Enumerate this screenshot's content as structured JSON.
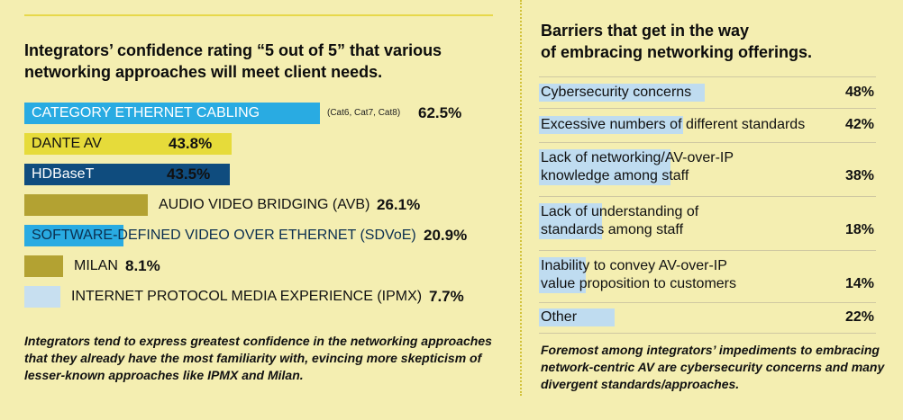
{
  "chart_data": [
    {
      "type": "bar",
      "orientation": "horizontal",
      "title": "Integrators’ confidence rating “5 out of 5” that various networking approaches will meet client needs.",
      "categories": [
        "CATEGORY ETHERNET CABLING",
        "DANTE AV",
        "HDBaseT",
        "AUDIO VIDEO BRIDGING (AVB)",
        "SOFTWARE-DEFINED VIDEO OVER ETHERNET (SDVoE)",
        "MILAN",
        "INTERNET PROTOCOL MEDIA EXPERIENCE (IPMX)"
      ],
      "notes": [
        "(Cat6, Cat7, Cat8)",
        "",
        "",
        "",
        "",
        "",
        ""
      ],
      "values": [
        62.5,
        43.8,
        43.5,
        26.1,
        20.9,
        8.1,
        7.7
      ],
      "value_labels": [
        "62.5%",
        "43.8%",
        "43.5%",
        "26.1%",
        "20.9%",
        "8.1%",
        "7.7%"
      ],
      "colors": [
        "#29abe2",
        "#e6db3a",
        "#0f4c7e",
        "#b3a232",
        "#29abe2",
        "#b3a232",
        "#c7dff0"
      ],
      "caption": "Integrators tend to express greatest confidence in the networking approaches that they already have the most familiarity with, evincing more skepticism of lesser-known approaches like IPMX and Milan."
    },
    {
      "type": "table",
      "title_lines": [
        "Barriers that get in the way",
        "of embracing networking offerings."
      ],
      "rows": [
        {
          "lines": [
            "Cybersecurity concerns"
          ],
          "value": 48,
          "label": "48%"
        },
        {
          "lines": [
            "Excessive numbers of different standards"
          ],
          "value": 42,
          "label": "42%"
        },
        {
          "lines": [
            "Lack of networking/AV-over-IP",
            "knowledge among staff"
          ],
          "value": 38,
          "label": "38%"
        },
        {
          "lines": [
            "Lack of understanding of",
            "standards among staff"
          ],
          "value": 18,
          "label": "18%"
        },
        {
          "lines": [
            "Inability to convey AV-over-IP",
            "value proposition to customers"
          ],
          "value": 14,
          "label": "14%"
        },
        {
          "lines": [
            "Other"
          ],
          "value": 22,
          "label": "22%"
        }
      ],
      "highlight_color": "#bfdcf0",
      "caption": "Foremost among integrators’ impediments to embracing network-centric AV are cybersecurity concerns and many divergent standards/approaches."
    }
  ]
}
